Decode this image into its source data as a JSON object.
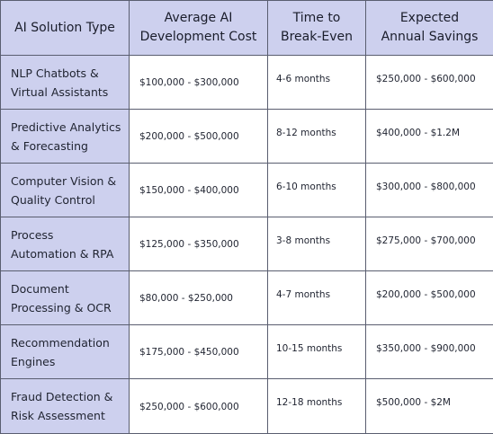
{
  "table": {
    "headers": [
      {
        "lines": [
          "AI Solution Type"
        ]
      },
      {
        "lines": [
          "Average AI",
          "Development Cost"
        ]
      },
      {
        "lines": [
          "Time to",
          "Break-Even"
        ]
      },
      {
        "lines": [
          "Expected",
          "Annual Savings"
        ]
      }
    ],
    "rows": [
      {
        "type": [
          "NLP Chatbots &",
          "Virtual Assistants"
        ],
        "cost": "$100,000 - $300,000",
        "time": "4-6 months",
        "savings": "$250,000 - $600,000"
      },
      {
        "type": [
          "Predictive Analytics",
          "& Forecasting"
        ],
        "cost": "$200,000 - $500,000",
        "time": "8-12 months",
        "savings": "$400,000 - $1.2M"
      },
      {
        "type": [
          "Computer Vision &",
          "Quality Control"
        ],
        "cost": "$150,000 - $400,000",
        "time": "6-10 months",
        "savings": "$300,000 - $800,000"
      },
      {
        "type": [
          "Process",
          "Automation & RPA"
        ],
        "cost": "$125,000 - $350,000",
        "time": "3-8 months",
        "savings": "$275,000 - $700,000"
      },
      {
        "type": [
          "Document",
          "Processing & OCR"
        ],
        "cost": "$80,000 - $250,000",
        "time": "4-7 months",
        "savings": "$200,000 - $500,000"
      },
      {
        "type": [
          "Recommendation",
          "Engines"
        ],
        "cost": "$175,000 - $450,000",
        "time": "10-15 months",
        "savings": "$350,000 - $900,000"
      },
      {
        "type": [
          "Fraud Detection &",
          "Risk Assessment"
        ],
        "cost": "$250,000 - $600,000",
        "time": "12-18 months",
        "savings": "$500,000 - $2M"
      }
    ]
  },
  "colors": {
    "header_bg": "#cdd0ee",
    "first_col_bg": "#cdd0ee",
    "border": "#5a5e70",
    "body_bg": "#ffffff"
  }
}
